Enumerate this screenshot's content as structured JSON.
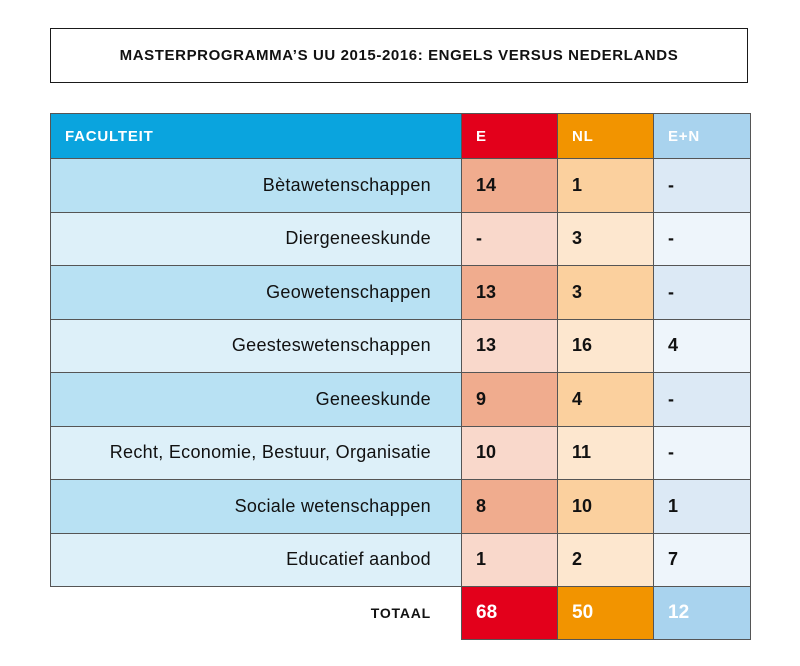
{
  "title": "MASTERPROGRAMMA’S UU 2015-2016: ENGELS VERSUS NEDERLANDS",
  "colors": {
    "header_faculteit": "#0aa4de",
    "header_e": "#e3001b",
    "header_nl": "#f29400",
    "header_en": "#a9d3ee",
    "row_fac_dark": "#b8e1f3",
    "row_fac_light": "#ddf0f9",
    "row_e_dark": "#f0ac8e",
    "row_e_light": "#f9d8cb",
    "row_nl_dark": "#fbd09e",
    "row_nl_light": "#fde7cf",
    "row_en_dark": "#dce9f5",
    "row_en_light": "#eef5fb"
  },
  "chart_data": {
    "type": "table",
    "columns": [
      "FACULTEIT",
      "E",
      "NL",
      "E+N"
    ],
    "rows": [
      {
        "faculteit": "Bètawetenschappen",
        "e": "14",
        "nl": "1",
        "en": "-"
      },
      {
        "faculteit": "Diergeneeskunde",
        "e": "-",
        "nl": "3",
        "en": "-"
      },
      {
        "faculteit": "Geowetenschappen",
        "e": "13",
        "nl": "3",
        "en": "-"
      },
      {
        "faculteit": "Geesteswetenschappen",
        "e": "13",
        "nl": "16",
        "en": "4"
      },
      {
        "faculteit": "Geneeskunde",
        "e": "9",
        "nl": "4",
        "en": "-"
      },
      {
        "faculteit": "Recht, Economie, Bestuur, Organisatie",
        "e": "10",
        "nl": "11",
        "en": "-"
      },
      {
        "faculteit": "Sociale wetenschappen",
        "e": "8",
        "nl": "10",
        "en": "1"
      },
      {
        "faculteit": "Educatief aanbod",
        "e": "1",
        "nl": "2",
        "en": "7"
      }
    ],
    "total": {
      "label": "TOTAAL",
      "e": "68",
      "nl": "50",
      "en": "12"
    }
  }
}
